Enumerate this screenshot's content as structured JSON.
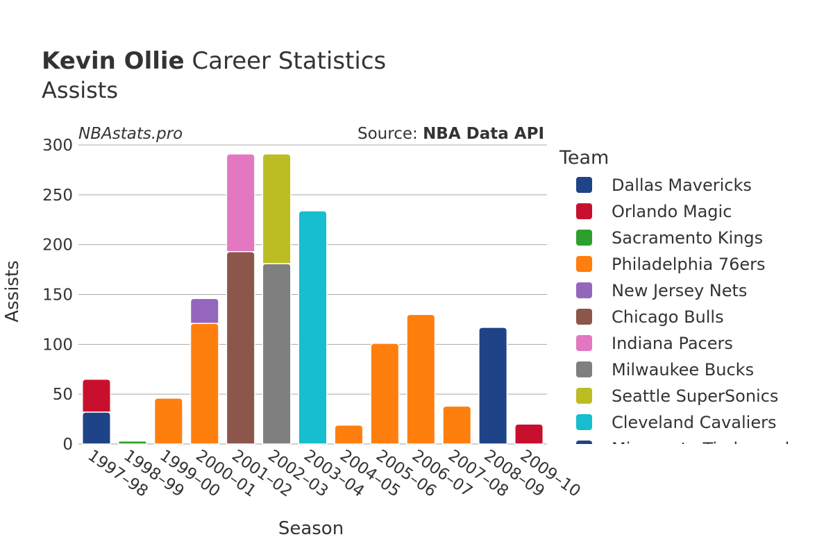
{
  "title": {
    "bold": "Kevin Ollie",
    "rest": " Career Statistics",
    "subtitle": "Assists"
  },
  "watermark": "NBAstats.pro",
  "source": {
    "prefix": "Source: ",
    "name": "NBA Data API"
  },
  "legend_title": "Team",
  "colors": {
    "Dallas Mavericks": "#1f4387",
    "Orlando Magic": "#c8102e",
    "Sacramento Kings": "#2ca02c",
    "Philadelphia 76ers": "#ff7f0e",
    "New Jersey Nets": "#9467bd",
    "Chicago Bulls": "#8c564b",
    "Indiana Pacers": "#e377c2",
    "Milwaukee Bucks": "#7f7f7f",
    "Seattle SuperSonics": "#bcbd22",
    "Cleveland Cavaliers": "#17becf",
    "Minnesota Timberwolves": "#1f4387"
  },
  "chart_data": {
    "type": "bar",
    "stacked": true,
    "xlabel": "Season",
    "ylabel": "Assists",
    "ylim": [
      0,
      300
    ],
    "yticks": [
      0,
      50,
      100,
      150,
      200,
      250,
      300
    ],
    "grid": true,
    "legend_position": "right",
    "categories": [
      "1997–98",
      "1998–99",
      "1999–00",
      "2000–01",
      "2001–02",
      "2002–03",
      "2003–04",
      "2004–05",
      "2005–06",
      "2006–07",
      "2007–08",
      "2008–09",
      "2009–10"
    ],
    "series": [
      {
        "name": "Dallas Mavericks",
        "values": [
          32,
          0,
          0,
          0,
          0,
          0,
          0,
          0,
          0,
          0,
          0,
          0,
          0
        ]
      },
      {
        "name": "Orlando Magic",
        "values": [
          33,
          0,
          0,
          0,
          0,
          0,
          0,
          0,
          0,
          0,
          0,
          0,
          0
        ]
      },
      {
        "name": "Sacramento Kings",
        "values": [
          0,
          3,
          0,
          0,
          0,
          0,
          0,
          0,
          0,
          0,
          0,
          0,
          0
        ]
      },
      {
        "name": "Philadelphia 76ers",
        "values": [
          0,
          0,
          46,
          121,
          0,
          0,
          0,
          19,
          101,
          130,
          38,
          0,
          0
        ]
      },
      {
        "name": "New Jersey Nets",
        "values": [
          0,
          0,
          0,
          25,
          0,
          0,
          0,
          0,
          0,
          0,
          0,
          0,
          0
        ]
      },
      {
        "name": "Chicago Bulls",
        "values": [
          0,
          0,
          0,
          0,
          193,
          0,
          0,
          0,
          0,
          0,
          0,
          0,
          0
        ]
      },
      {
        "name": "Indiana Pacers",
        "values": [
          0,
          0,
          0,
          0,
          98,
          0,
          0,
          0,
          0,
          0,
          0,
          0,
          0
        ]
      },
      {
        "name": "Milwaukee Bucks",
        "values": [
          0,
          0,
          0,
          0,
          0,
          181,
          0,
          0,
          0,
          0,
          0,
          0,
          0
        ]
      },
      {
        "name": "Seattle SuperSonics",
        "values": [
          0,
          0,
          0,
          0,
          0,
          110,
          0,
          0,
          0,
          0,
          0,
          0,
          0
        ]
      },
      {
        "name": "Cleveland Cavaliers",
        "values": [
          0,
          0,
          0,
          0,
          0,
          0,
          234,
          0,
          0,
          0,
          0,
          0,
          0
        ]
      },
      {
        "name": "Minnesota Timberwolves",
        "values": [
          0,
          0,
          0,
          0,
          0,
          0,
          0,
          0,
          0,
          0,
          0,
          117,
          0
        ]
      },
      {
        "name": "Orlando Magic",
        "values": [
          0,
          0,
          0,
          0,
          0,
          0,
          0,
          0,
          0,
          0,
          0,
          0,
          20
        ]
      }
    ]
  }
}
